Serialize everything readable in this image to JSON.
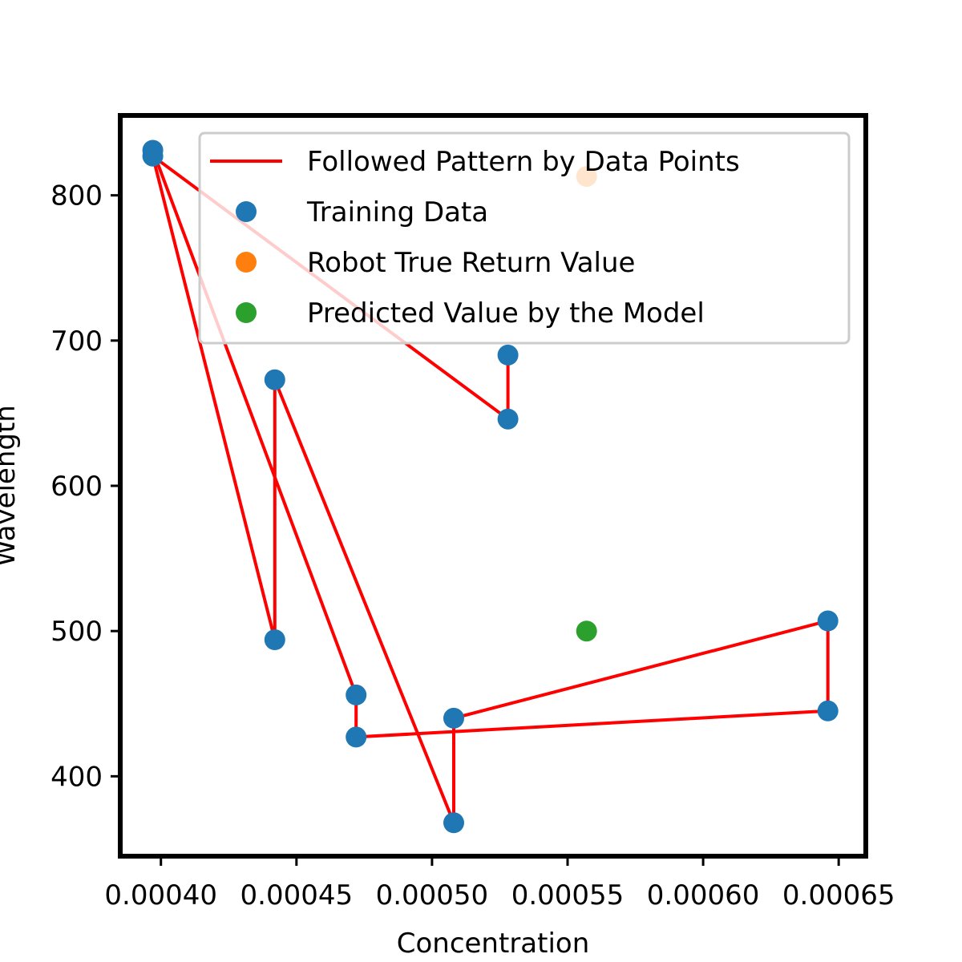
{
  "chart_data": {
    "type": "scatter",
    "title": "",
    "xlabel": "Concentration",
    "ylabel": "Wavelength",
    "xlim": [
      0.000385,
      0.00066
    ],
    "ylim": [
      345,
      855
    ],
    "x_ticks": [
      0.0004,
      0.00045,
      0.0005,
      0.00055,
      0.0006,
      0.00065
    ],
    "x_tick_labels": [
      "0.00040",
      "0.00045",
      "0.00050",
      "0.00055",
      "0.00060",
      "0.00065"
    ],
    "y_ticks": [
      400,
      500,
      600,
      700,
      800
    ],
    "y_tick_labels": [
      "400",
      "500",
      "600",
      "700",
      "800"
    ],
    "grid": false,
    "legend_position": "top-right",
    "series": [
      {
        "name": "Followed Pattern by Data Points",
        "kind": "line",
        "color": "#ff0000",
        "points": [
          [
            0.000397,
            831
          ],
          [
            0.000397,
            827
          ],
          [
            0.000528,
            646
          ],
          [
            0.000528,
            690
          ],
          [
            0.000528,
            646
          ],
          [
            0.000397,
            827
          ],
          [
            0.000442,
            494
          ],
          [
            0.000442,
            673
          ],
          [
            0.000508,
            368
          ],
          [
            0.000508,
            440
          ],
          [
            0.000646,
            507
          ],
          [
            0.000646,
            445
          ],
          [
            0.000472,
            427
          ],
          [
            0.000472,
            456
          ],
          [
            0.000397,
            831
          ]
        ]
      },
      {
        "name": "Training Data",
        "kind": "scatter",
        "color": "#1f77b4",
        "points": [
          [
            0.000397,
            831
          ],
          [
            0.000397,
            827
          ],
          [
            0.000442,
            673
          ],
          [
            0.000442,
            494
          ],
          [
            0.000472,
            456
          ],
          [
            0.000472,
            427
          ],
          [
            0.000508,
            440
          ],
          [
            0.000508,
            368
          ],
          [
            0.000528,
            690
          ],
          [
            0.000528,
            646
          ],
          [
            0.000646,
            507
          ],
          [
            0.000646,
            445
          ]
        ]
      },
      {
        "name": "Robot True Return Value",
        "kind": "scatter",
        "color": "#ff7f0e",
        "points": [
          [
            0.000557,
            813
          ]
        ]
      },
      {
        "name": "Predicted Value by the Model",
        "kind": "scatter",
        "color": "#2ca02c",
        "points": [
          [
            0.000557,
            500
          ]
        ]
      }
    ]
  }
}
